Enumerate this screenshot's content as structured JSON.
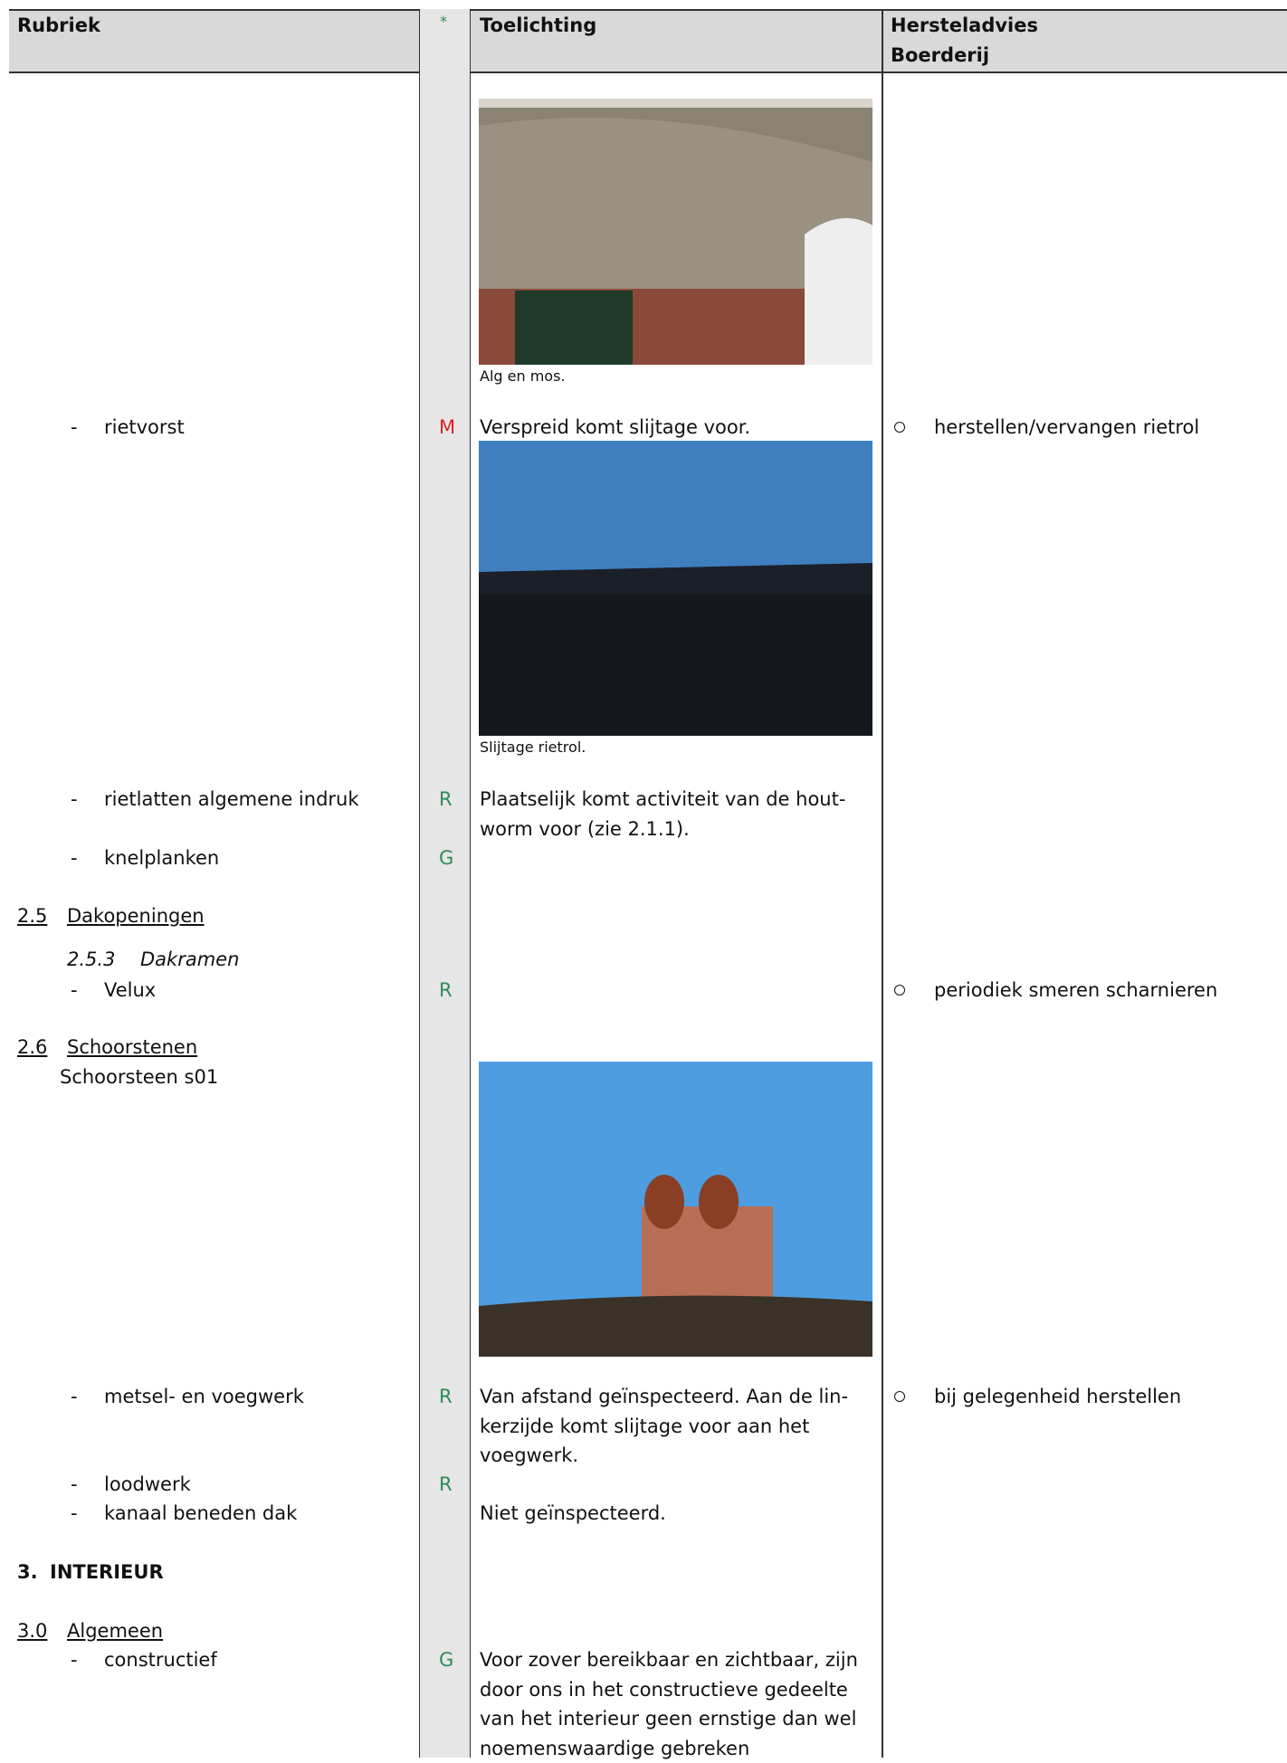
{
  "header": {
    "rubriek": "Rubriek",
    "star": "*",
    "toelichting": "Toelichting",
    "advies": [
      "Hersteladvies",
      "Boerderij"
    ]
  },
  "photos": [
    {
      "caption": "Alg en mos."
    },
    {
      "caption": "Slijtage rietrol."
    }
  ],
  "items": [
    {
      "marker": "-",
      "label": "rietvorst",
      "code": "M",
      "text": [
        "Verspreid komt slijtage voor."
      ],
      "advice": "herstellen/vervangen rietrol"
    },
    {
      "marker": "-",
      "label": "rietlatten algemene indruk",
      "code": "R",
      "text": [
        "Plaatselijk komt activiteit van de hout-",
        "worm voor (zie 2.1.1)."
      ]
    },
    {
      "marker": "-",
      "label": "knelplanken",
      "code": "G"
    },
    {
      "marker": "-",
      "label": "Velux",
      "code": "R",
      "advice": "periodiek smeren scharnieren"
    },
    {
      "marker": "-",
      "label": "metsel- en voegwerk",
      "code": "R",
      "text": [
        "Van afstand geïnspecteerd. Aan de lin-",
        "kerzijde komt slijtage voor aan het",
        "voegwerk."
      ],
      "advice": "bij gelegenheid herstellen"
    },
    {
      "marker": "-",
      "label": "loodwerk",
      "code": "R"
    },
    {
      "marker": "-",
      "label": "kanaal beneden dak",
      "text": [
        "Niet geïnspecteerd."
      ]
    },
    {
      "marker": "-",
      "label": "constructief",
      "code": "G",
      "text": [
        "Voor zover bereikbaar en zichtbaar, zijn",
        "door ons in het constructieve gedeelte",
        "van het interieur geen ernstige dan wel",
        "noemenswaardige gebreken"
      ]
    }
  ],
  "sections": [
    {
      "number": "2.5",
      "title": "Dakopeningen"
    },
    {
      "number": "2.5.3",
      "title": "Dakramen"
    },
    {
      "number": "2.6",
      "title": "Schoorstenen",
      "sub": "Schoorsteen s01"
    },
    {
      "number": "3.",
      "title": "INTERIEUR"
    },
    {
      "number": "3.0",
      "title": "Algemeen"
    }
  ]
}
